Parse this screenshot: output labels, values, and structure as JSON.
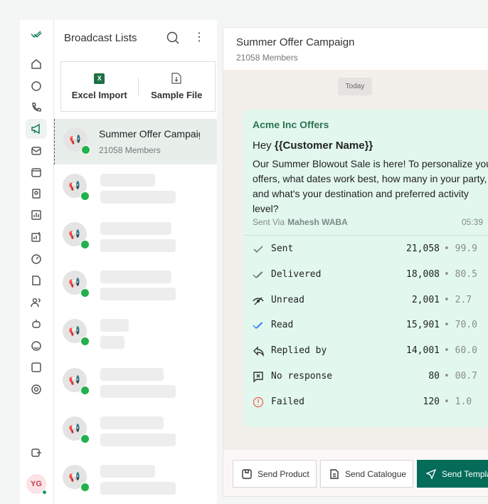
{
  "sidebar": {
    "logo": "double-check-logo",
    "items": [
      "home",
      "chat",
      "phone",
      "broadcast",
      "mail",
      "calendar",
      "contacts",
      "reports",
      "analytics",
      "speed",
      "document",
      "users",
      "bot",
      "emoji",
      "ads",
      "settings"
    ],
    "active": "broadcast",
    "logout": "logout",
    "avatar": "YG",
    "accent": "#0f7a5c"
  },
  "list": {
    "title": "Broadcast Lists",
    "excel_import": "Excel Import",
    "sample_file": "Sample File",
    "selected": {
      "name": "Summer Offer Campaign",
      "members": "21058 Members"
    }
  },
  "chat": {
    "title": "Summer Offer Campaign",
    "members": "21058 Members",
    "date_chip": "Today",
    "message": {
      "from": "Acme Inc Offers",
      "greeting": "Hey",
      "placeholder": "{{Customer Name}}",
      "body": "Our Summer Blowout Sale is here! To personalize your offers, what dates work best, how many in your party, and what's your destination and preferred activity level?",
      "sent_via_label": "Sent Via",
      "sent_via": "Mahesh WABA",
      "time": "05:39"
    },
    "stats": [
      {
        "label": "Sent",
        "value": "21,058",
        "percent": "• 99.9",
        "icon": "check-icon"
      },
      {
        "label": "Delivered",
        "value": "18,008",
        "percent": "• 80.5",
        "icon": "double-check-icon"
      },
      {
        "label": "Unread",
        "value": "2,001",
        "percent": "• 2.7",
        "icon": "eye-off-icon"
      },
      {
        "label": "Read",
        "value": "15,901",
        "percent": "• 70.0",
        "icon": "double-check-blue-icon"
      },
      {
        "label": "Replied by",
        "value": "14,001",
        "percent": "• 60.0",
        "icon": "reply-icon"
      },
      {
        "label": "No response",
        "value": "80",
        "percent": "• 00.7",
        "icon": "no-response-icon"
      },
      {
        "label": "Failed",
        "value": "120",
        "percent": "• 1.0",
        "icon": "alert-icon"
      }
    ]
  },
  "footer": {
    "send_product": "Send Product",
    "send_catalogue": "Send Catalogue",
    "send_template": "Send Template"
  }
}
